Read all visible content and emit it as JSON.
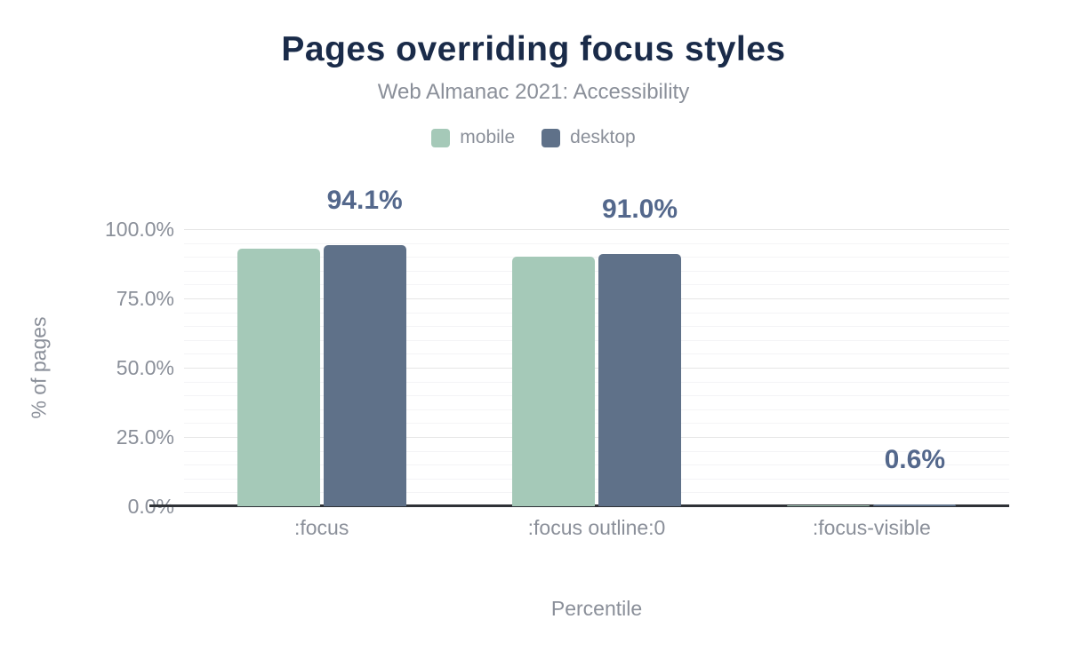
{
  "header": {
    "title": "Pages overriding focus styles",
    "subtitle": "Web Almanac 2021: Accessibility"
  },
  "legend": {
    "items": [
      {
        "label": "mobile",
        "color": "#a5c9b8"
      },
      {
        "label": "desktop",
        "color": "#5f7189"
      }
    ]
  },
  "chart_data": {
    "type": "bar",
    "title": "Pages overriding focus styles",
    "subtitle": "Web Almanac 2021: Accessibility",
    "categories": [
      ":focus",
      ":focus outline:0",
      ":focus-visible"
    ],
    "series": [
      {
        "name": "mobile",
        "color": "#a5c9b8",
        "values": [
          93.0,
          90.0,
          0.4
        ]
      },
      {
        "name": "desktop",
        "color": "#5f7189",
        "values": [
          94.1,
          91.0,
          0.6
        ]
      }
    ],
    "data_labels": {
      "on_series": "desktop",
      "texts": [
        "94.1%",
        "91.0%",
        "0.6%"
      ]
    },
    "xlabel": "Percentile",
    "ylabel": "% of pages",
    "ylim": [
      0,
      100
    ],
    "ytick_values": [
      0,
      25,
      50,
      75,
      100
    ],
    "ytick_labels": [
      "0.0%",
      "25.0%",
      "50.0%",
      "75.0%",
      "100.0%"
    ],
    "minor_grid_step": 5,
    "grid": "horizontal, major every 25%, minor every 5%",
    "legend_position": "top-center"
  },
  "colors": {
    "title": "#1a2b49",
    "muted_text": "#8a8f99",
    "data_label": "#54688c",
    "axis_line": "#2f3237",
    "grid_major": "#e6e6e6",
    "grid_minor": "#f4f4f6",
    "background": "#ffffff"
  }
}
